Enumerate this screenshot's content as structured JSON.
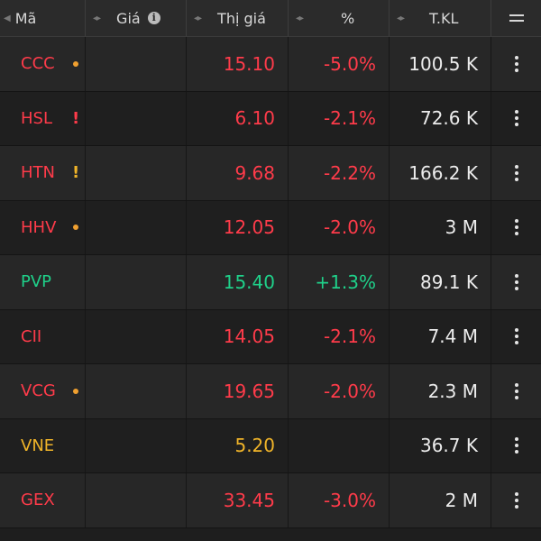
{
  "header": {
    "col_code": "Mã",
    "col_ref": "Giá",
    "col_price": "Thị giá",
    "col_pct": "%",
    "col_vol": "T.KL"
  },
  "colors": {
    "down": "#ff3b4a",
    "up": "#1fd18a",
    "ref": "#f0b429",
    "neutral": "#ececec",
    "dot": "#f0a030",
    "warning": "#ff3b4a",
    "warning_amber": "#f0b429"
  },
  "rows": [
    {
      "code": "CCC",
      "marker": "dot",
      "price": "15.10",
      "pct": "-5.0%",
      "vol": "100.5 K",
      "status": "down"
    },
    {
      "code": "HSL",
      "marker": "warn-red",
      "price": "6.10",
      "pct": "-2.1%",
      "vol": "72.6 K",
      "status": "down"
    },
    {
      "code": "HTN",
      "marker": "warn-amber",
      "price": "9.68",
      "pct": "-2.2%",
      "vol": "166.2 K",
      "status": "down"
    },
    {
      "code": "HHV",
      "marker": "dot",
      "price": "12.05",
      "pct": "-2.0%",
      "vol": "3 M",
      "status": "down"
    },
    {
      "code": "PVP",
      "marker": "",
      "price": "15.40",
      "pct": "+1.3%",
      "vol": "89.1 K",
      "status": "up"
    },
    {
      "code": "CII",
      "marker": "",
      "price": "14.05",
      "pct": "-2.1%",
      "vol": "7.4 M",
      "status": "down"
    },
    {
      "code": "VCG",
      "marker": "dot",
      "price": "19.65",
      "pct": "-2.0%",
      "vol": "2.3 M",
      "status": "down"
    },
    {
      "code": "VNE",
      "marker": "",
      "price": "5.20",
      "pct": "",
      "vol": "36.7 K",
      "status": "ref"
    },
    {
      "code": "GEX",
      "marker": "",
      "price": "33.45",
      "pct": "-3.0%",
      "vol": "2 M",
      "status": "down"
    }
  ],
  "icons": {
    "sort": "sort-arrows-icon",
    "info": "info-icon",
    "menu": "menu-icon",
    "more": "more-vertical-icon",
    "dot": "alert-dot-icon",
    "warning": "warning-exclamation-icon"
  }
}
